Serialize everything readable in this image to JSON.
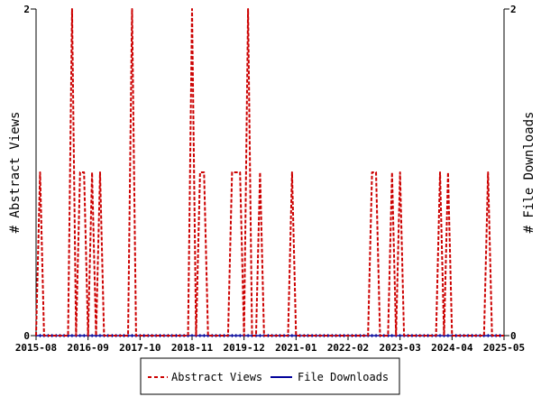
{
  "chart_data": {
    "type": "line",
    "title": "",
    "ylabel_left": "# Abstract Views",
    "ylabel_right": "# File Downloads",
    "ylim_left": [
      0,
      2
    ],
    "ylim_right": [
      0,
      2
    ],
    "yticks_left": [
      "0",
      "2"
    ],
    "yticks_right": [
      "0",
      "2"
    ],
    "x_start": "2015-08",
    "x_end": "2025-05",
    "xtick_labels": [
      "2015-08",
      "2016-09",
      "2017-10",
      "2018-11",
      "2019-12",
      "2021-01",
      "2022-02",
      "2023-03",
      "2024-04",
      "2025-05"
    ],
    "legend_position": "bottom",
    "series": [
      {
        "name": "Abstract Views",
        "color": "#cc0000",
        "style": "dashed",
        "points": [
          [
            "2015-09",
            1
          ],
          [
            "2016-05",
            2
          ],
          [
            "2016-07",
            1
          ],
          [
            "2016-08",
            1
          ],
          [
            "2016-10",
            1
          ],
          [
            "2016-12",
            1
          ],
          [
            "2017-08",
            2
          ],
          [
            "2018-11",
            2
          ],
          [
            "2019-01",
            1
          ],
          [
            "2019-02",
            1
          ],
          [
            "2019-09",
            1
          ],
          [
            "2019-10",
            1
          ],
          [
            "2019-11",
            1
          ],
          [
            "2020-01",
            2
          ],
          [
            "2020-04",
            1
          ],
          [
            "2020-12",
            1
          ],
          [
            "2022-08",
            1
          ],
          [
            "2022-09",
            1
          ],
          [
            "2023-01",
            1
          ],
          [
            "2023-03",
            1
          ],
          [
            "2024-01",
            1
          ],
          [
            "2024-03",
            1
          ],
          [
            "2025-01",
            1
          ]
        ]
      },
      {
        "name": "File Downloads",
        "color": "#000099",
        "style": "solid",
        "points": []
      }
    ]
  }
}
